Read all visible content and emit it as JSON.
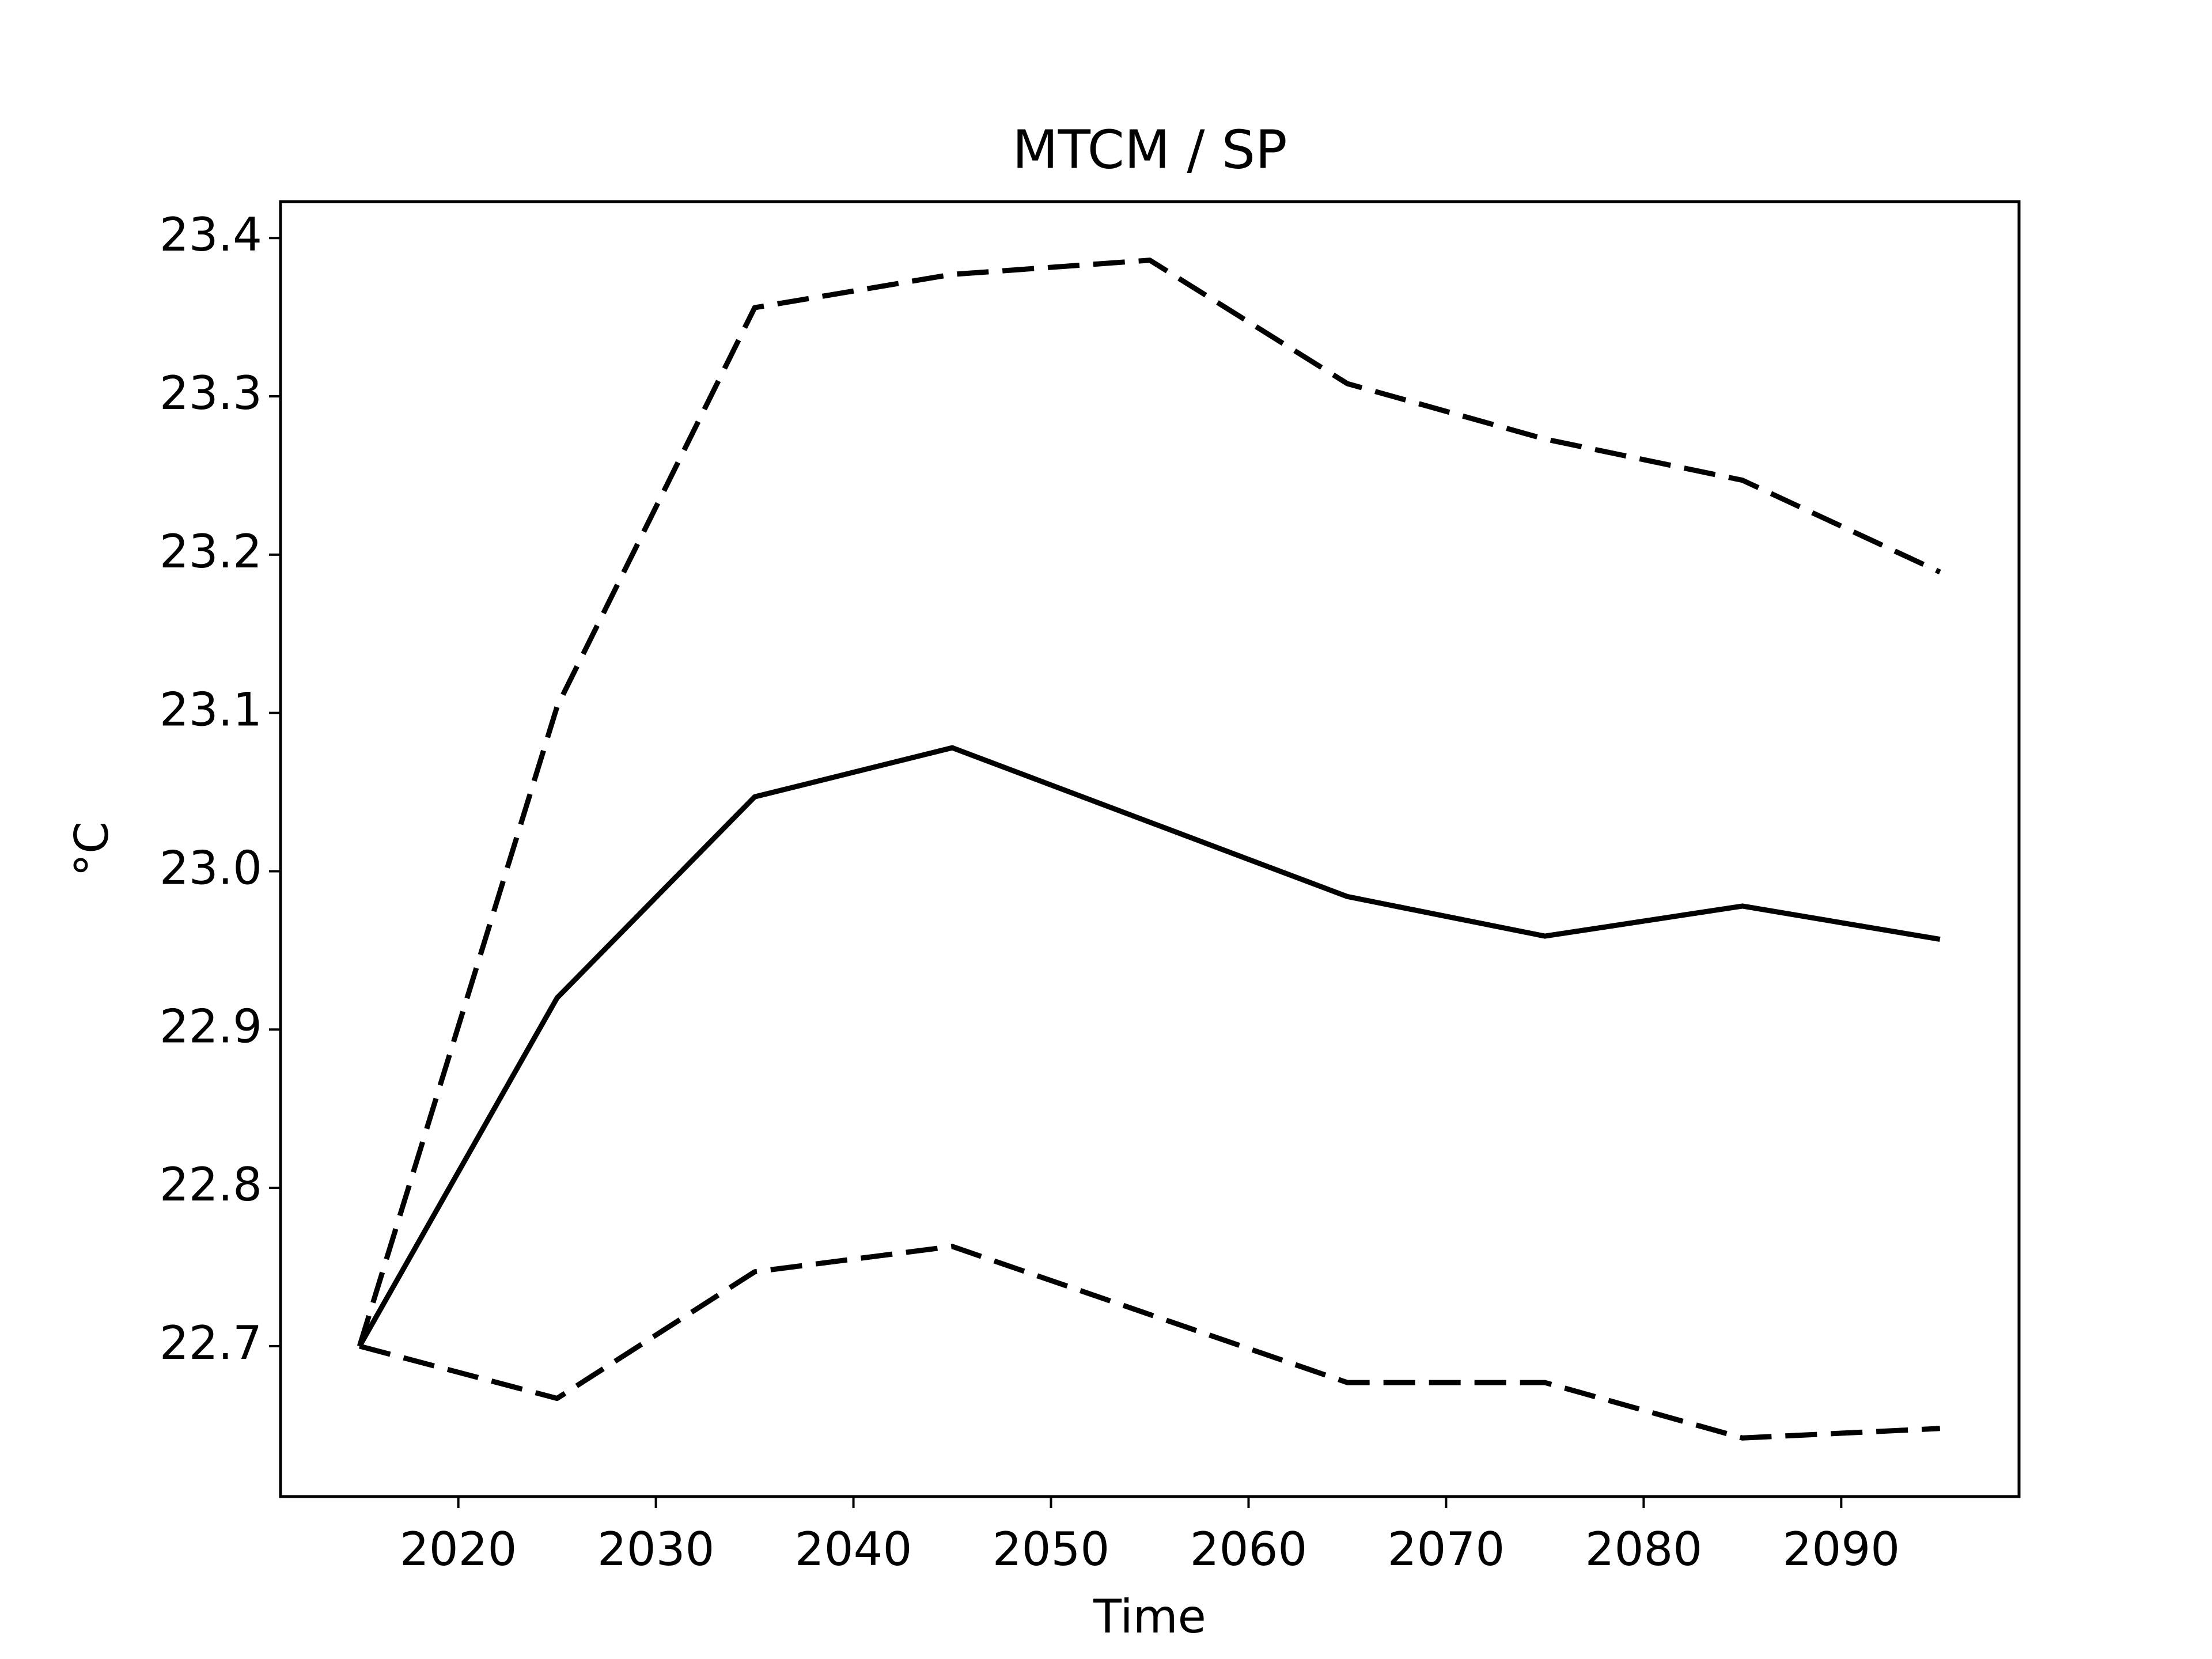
{
  "chart_data": {
    "type": "line",
    "title": "MTCM / SP",
    "xlabel": "Time",
    "ylabel": "°C",
    "x": [
      2015,
      2025,
      2035,
      2045,
      2055,
      2065,
      2075,
      2085,
      2095
    ],
    "series": [
      {
        "color": "#000000",
        "dashed": false,
        "values": [
          22.7,
          22.92,
          23.047,
          23.078,
          23.031,
          22.984,
          22.959,
          22.978,
          22.957
        ]
      },
      {
        "color": "#000000",
        "dashed": true,
        "values": [
          22.7,
          23.104,
          23.356,
          23.377,
          23.386,
          23.308,
          23.273,
          23.247,
          23.189
        ]
      },
      {
        "color": "#000000",
        "dashed": true,
        "values": [
          22.7,
          22.667,
          22.747,
          22.763,
          22.72,
          22.677,
          22.677,
          22.642,
          22.648
        ]
      }
    ],
    "xlim": [
      2011,
      2099
    ],
    "xticks": [
      2020,
      2030,
      2040,
      2050,
      2060,
      2070,
      2080,
      2090
    ],
    "ylim": [
      22.605,
      23.423
    ],
    "yticks": [
      22.7,
      22.8,
      22.9,
      {
        "value": 23,
        "label": "23.0"
      },
      23.1,
      23.2,
      23.3,
      23.4
    ],
    "grid": false
  }
}
